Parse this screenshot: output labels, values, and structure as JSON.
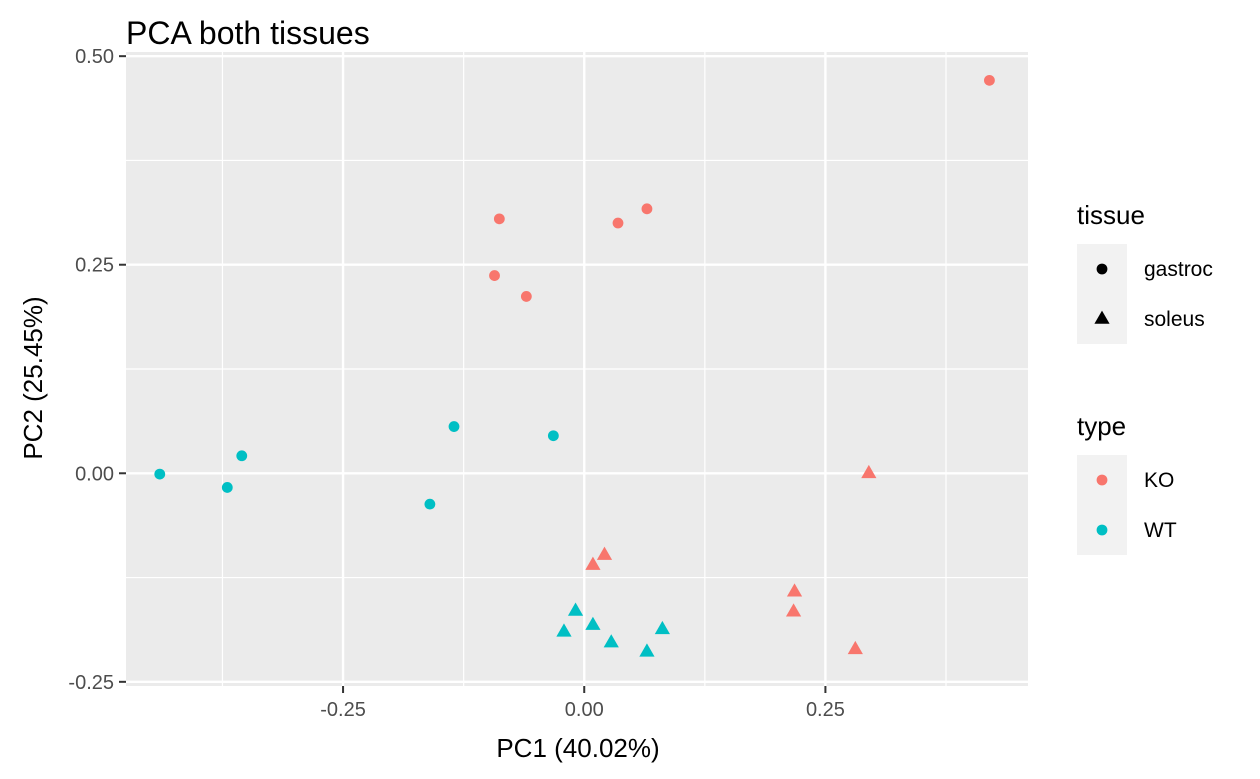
{
  "chart_data": {
    "type": "scatter",
    "title": "PCA both tissues",
    "xlabel": "PC1 (40.02%)",
    "ylabel": "PC2 (25.45%)",
    "xlim": [
      -0.475,
      0.46
    ],
    "ylim": [
      -0.255,
      0.505
    ],
    "x_ticks": [
      -0.25,
      0.0,
      0.25
    ],
    "x_tick_labels": [
      "-0.25",
      "0.00",
      "0.25"
    ],
    "y_ticks": [
      -0.25,
      0.0,
      0.25,
      0.5
    ],
    "y_tick_labels": [
      "-0.25",
      "0.00",
      "0.25",
      "0.50"
    ],
    "grid": true,
    "legend_position": "right",
    "legends": [
      {
        "title": "tissue",
        "items": [
          {
            "label": "gastroc",
            "shape": "circle"
          },
          {
            "label": "soleus",
            "shape": "triangle"
          }
        ]
      },
      {
        "title": "type",
        "items": [
          {
            "label": "KO",
            "color": "#F8766D"
          },
          {
            "label": "WT",
            "color": "#00BFC4"
          }
        ]
      }
    ],
    "colors": {
      "KO": "#F8766D",
      "WT": "#00BFC4",
      "panel": "#EBEBEB",
      "grid": "#FFFFFF",
      "legend_key": "#F2F2F2"
    },
    "points": [
      {
        "x": 0.42,
        "y": 0.471,
        "type": "KO",
        "tissue": "gastroc"
      },
      {
        "x": -0.088,
        "y": 0.305,
        "type": "KO",
        "tissue": "gastroc"
      },
      {
        "x": 0.035,
        "y": 0.3,
        "type": "KO",
        "tissue": "gastroc"
      },
      {
        "x": 0.065,
        "y": 0.317,
        "type": "KO",
        "tissue": "gastroc"
      },
      {
        "x": -0.093,
        "y": 0.237,
        "type": "KO",
        "tissue": "gastroc"
      },
      {
        "x": -0.06,
        "y": 0.212,
        "type": "KO",
        "tissue": "gastroc"
      },
      {
        "x": -0.135,
        "y": 0.056,
        "type": "WT",
        "tissue": "gastroc"
      },
      {
        "x": -0.032,
        "y": 0.045,
        "type": "WT",
        "tissue": "gastroc"
      },
      {
        "x": -0.44,
        "y": -0.001,
        "type": "WT",
        "tissue": "gastroc"
      },
      {
        "x": -0.355,
        "y": 0.021,
        "type": "WT",
        "tissue": "gastroc"
      },
      {
        "x": -0.37,
        "y": -0.017,
        "type": "WT",
        "tissue": "gastroc"
      },
      {
        "x": -0.16,
        "y": -0.037,
        "type": "WT",
        "tissue": "gastroc"
      },
      {
        "x": 0.295,
        "y": 0.0,
        "type": "KO",
        "tissue": "soleus"
      },
      {
        "x": 0.009,
        "y": -0.11,
        "type": "KO",
        "tissue": "soleus"
      },
      {
        "x": 0.021,
        "y": -0.098,
        "type": "KO",
        "tissue": "soleus"
      },
      {
        "x": 0.218,
        "y": -0.142,
        "type": "KO",
        "tissue": "soleus"
      },
      {
        "x": 0.217,
        "y": -0.166,
        "type": "KO",
        "tissue": "soleus"
      },
      {
        "x": 0.281,
        "y": -0.211,
        "type": "KO",
        "tissue": "soleus"
      },
      {
        "x": -0.009,
        "y": -0.165,
        "type": "WT",
        "tissue": "soleus"
      },
      {
        "x": 0.009,
        "y": -0.182,
        "type": "WT",
        "tissue": "soleus"
      },
      {
        "x": -0.021,
        "y": -0.19,
        "type": "WT",
        "tissue": "soleus"
      },
      {
        "x": 0.028,
        "y": -0.203,
        "type": "WT",
        "tissue": "soleus"
      },
      {
        "x": 0.081,
        "y": -0.187,
        "type": "WT",
        "tissue": "soleus"
      },
      {
        "x": 0.065,
        "y": -0.214,
        "type": "WT",
        "tissue": "soleus"
      }
    ]
  }
}
